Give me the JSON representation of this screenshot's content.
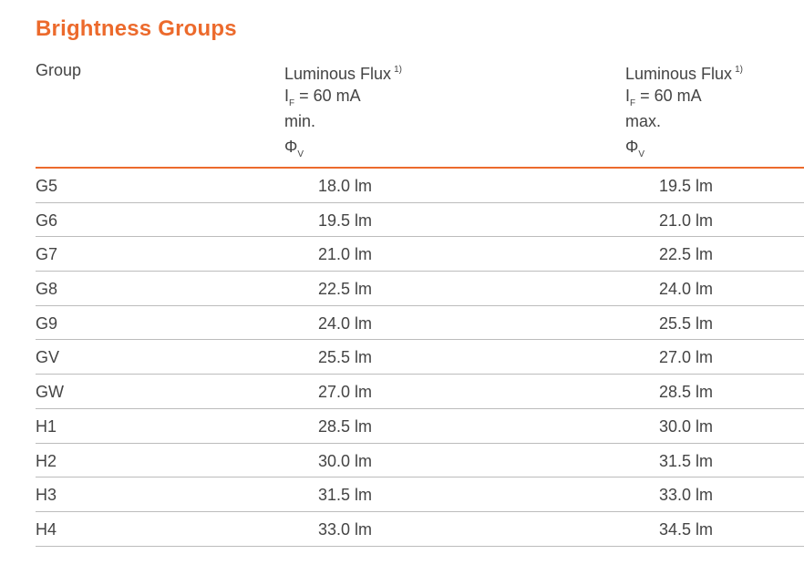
{
  "title": "Brightness Groups",
  "header": {
    "group": "Group",
    "min": {
      "name": "Luminous Flux",
      "footnote": "1)",
      "cond_symbol": "I",
      "cond_sub": "F",
      "cond_value": " = 60 mA",
      "qualifier": "min.",
      "symbol": "Φ",
      "symbol_sub": "V"
    },
    "max": {
      "name": "Luminous Flux",
      "footnote": "1)",
      "cond_symbol": "I",
      "cond_sub": "F",
      "cond_value": " = 60 mA",
      "qualifier": "max.",
      "symbol": "Φ",
      "symbol_sub": "V"
    }
  },
  "rows": [
    {
      "group": "G5",
      "min": "18.0 lm",
      "max": "19.5 lm"
    },
    {
      "group": "G6",
      "min": "19.5 lm",
      "max": "21.0 lm"
    },
    {
      "group": "G7",
      "min": "21.0 lm",
      "max": "22.5 lm"
    },
    {
      "group": "G8",
      "min": "22.5 lm",
      "max": "24.0 lm"
    },
    {
      "group": "G9",
      "min": "24.0 lm",
      "max": "25.5 lm"
    },
    {
      "group": "GV",
      "min": "25.5 lm",
      "max": "27.0 lm"
    },
    {
      "group": "GW",
      "min": "27.0 lm",
      "max": "28.5 lm"
    },
    {
      "group": "H1",
      "min": "28.5 lm",
      "max": "30.0 lm"
    },
    {
      "group": "H2",
      "min": "30.0 lm",
      "max": "31.5 lm"
    },
    {
      "group": "H3",
      "min": "31.5 lm",
      "max": "33.0 lm"
    },
    {
      "group": "H4",
      "min": "33.0 lm",
      "max": "34.5 lm"
    }
  ]
}
